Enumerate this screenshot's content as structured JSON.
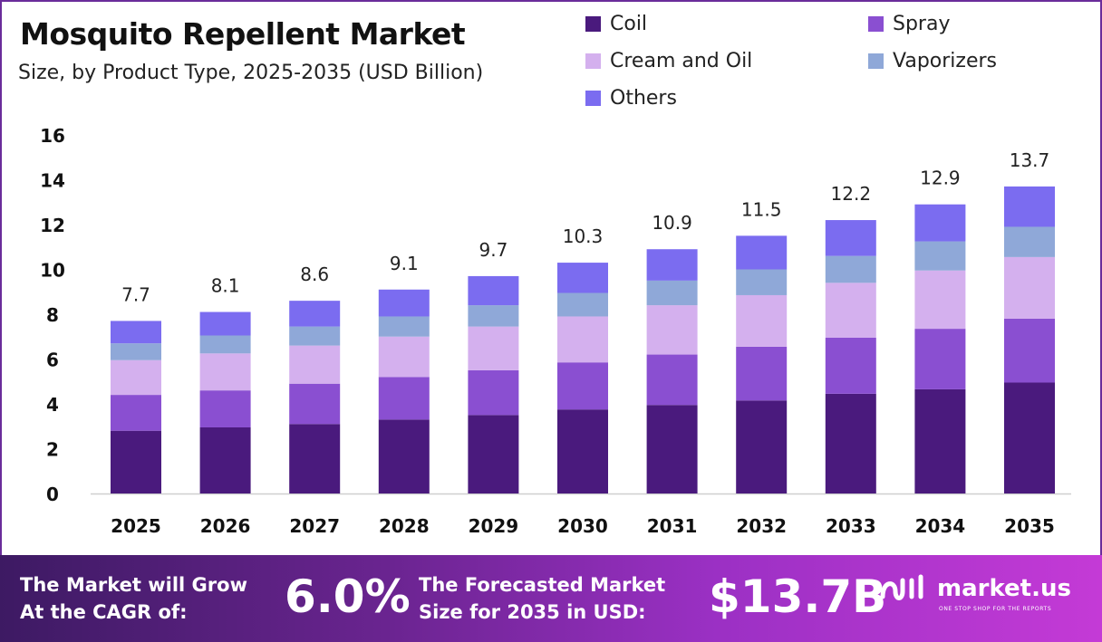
{
  "header": {
    "title": "Mosquito Repellent Market",
    "subtitle": "Size, by Product Type, 2025-2035 (USD Billion)"
  },
  "legend": [
    {
      "label": "Coil",
      "color": "#4a1a7d"
    },
    {
      "label": "Spray",
      "color": "#8a4fd1"
    },
    {
      "label": "Cream and Oil",
      "color": "#d4b0ee"
    },
    {
      "label": "Vaporizers",
      "color": "#8fa8d8"
    },
    {
      "label": "Others",
      "color": "#7b6cf0"
    }
  ],
  "chart_data": {
    "type": "bar",
    "stacked": true,
    "categories": [
      "2025",
      "2026",
      "2027",
      "2028",
      "2029",
      "2030",
      "2031",
      "2032",
      "2033",
      "2034",
      "2035"
    ],
    "series": [
      {
        "name": "Coil",
        "color": "#4a1a7d",
        "values": [
          2.8,
          2.95,
          3.1,
          3.3,
          3.5,
          3.75,
          3.95,
          4.15,
          4.45,
          4.65,
          4.95
        ]
      },
      {
        "name": "Spray",
        "color": "#8a4fd1",
        "values": [
          1.6,
          1.65,
          1.8,
          1.9,
          2.0,
          2.1,
          2.25,
          2.4,
          2.5,
          2.7,
          2.85
        ]
      },
      {
        "name": "Cream and Oil",
        "color": "#d4b0ee",
        "values": [
          1.55,
          1.65,
          1.7,
          1.8,
          1.95,
          2.05,
          2.2,
          2.3,
          2.45,
          2.6,
          2.75
        ]
      },
      {
        "name": "Vaporizers",
        "color": "#8fa8d8",
        "values": [
          0.75,
          0.8,
          0.85,
          0.9,
          0.95,
          1.05,
          1.1,
          1.15,
          1.2,
          1.3,
          1.35
        ]
      },
      {
        "name": "Others",
        "color": "#7b6cf0",
        "values": [
          1.0,
          1.05,
          1.15,
          1.2,
          1.3,
          1.35,
          1.4,
          1.5,
          1.6,
          1.65,
          1.8
        ]
      }
    ],
    "totals": [
      "7.7",
      "8.1",
      "8.6",
      "9.1",
      "9.7",
      "10.3",
      "10.9",
      "11.5",
      "12.2",
      "12.9",
      "13.7"
    ],
    "ylim": [
      0,
      16
    ],
    "yticks": [
      0,
      2,
      4,
      6,
      8,
      10,
      12,
      14,
      16
    ],
    "grid": false,
    "legend_position": "top-right"
  },
  "footer": {
    "cagr_label_line1": "The Market will Grow",
    "cagr_label_line2": "At the CAGR of:",
    "cagr_value": "6.0%",
    "forecast_label_line1": "The Forecasted Market",
    "forecast_label_line2": "Size for 2035 in USD:",
    "forecast_value": "$13.7B",
    "brand_name": "market.us",
    "brand_tagline": "ONE STOP SHOP FOR THE REPORTS",
    "brand_icon": "market-us-logo-icon"
  }
}
